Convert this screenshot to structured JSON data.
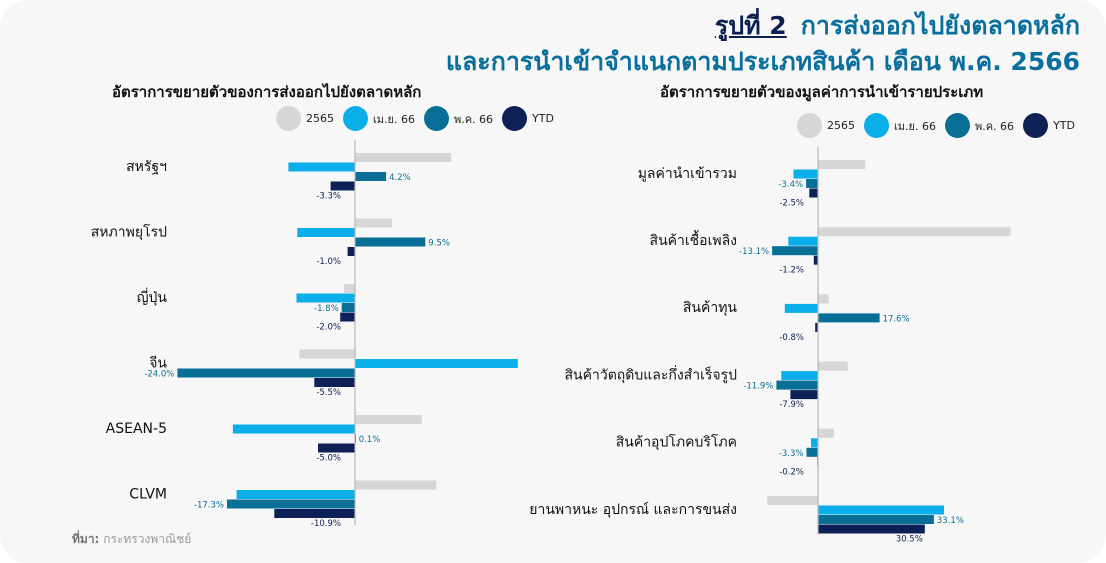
{
  "header": {
    "figure_label": "รูปที่ 2",
    "title_line1": "การส่งออกไปยังตลาดหลัก",
    "title_line2": "และการนำเข้าจำแนกตามประเภทสินค้า เดือน พ.ค. 2566"
  },
  "source": {
    "label": "ที่มา:",
    "text": "กระทรวงพาณิชย์"
  },
  "colors": {
    "2565": "#d6d6d6",
    "apr66": "#0aaee8",
    "may66": "#0a6f96",
    "ytd": "#0e2157"
  },
  "chart_data": [
    {
      "type": "bar",
      "orientation": "horizontal",
      "title": "อัตราการขยายตัวของการส่งออกไปยังตลาดหลัก",
      "categories": [
        "สหรัฐฯ",
        "สหภาพยุโรป",
        "ญี่ปุ่น",
        "จีน",
        "ASEAN-5",
        "CLVM"
      ],
      "series": [
        {
          "name": "2565",
          "values": [
            13.0,
            5.0,
            -1.5,
            -7.5,
            9.0,
            11.0
          ]
        },
        {
          "name": "เม.ย. 66",
          "values": [
            -9.0,
            -7.8,
            -7.9,
            22.0,
            -16.5,
            -16.0
          ]
        },
        {
          "name": "พ.ค. 66",
          "values": [
            4.2,
            9.5,
            -1.8,
            -24.0,
            0.1,
            -17.3
          ]
        },
        {
          "name": "YTD",
          "values": [
            -3.3,
            -1.0,
            -2.0,
            -5.5,
            -5.0,
            -10.9
          ]
        }
      ],
      "data_labels": [
        {
          "category": "สหรัฐฯ",
          "series": "พ.ค. 66",
          "text": "4.2%"
        },
        {
          "category": "สหรัฐฯ",
          "series": "YTD",
          "text": "-3.3%"
        },
        {
          "category": "สหภาพยุโรป",
          "series": "พ.ค. 66",
          "text": "9.5%"
        },
        {
          "category": "สหภาพยุโรป",
          "series": "YTD",
          "text": "-1.0%"
        },
        {
          "category": "ญี่ปุ่น",
          "series": "พ.ค. 66",
          "text": "-1.8%"
        },
        {
          "category": "ญี่ปุ่น",
          "series": "YTD",
          "text": "-2.0%"
        },
        {
          "category": "จีน",
          "series": "พ.ค. 66",
          "text": "-24.0%"
        },
        {
          "category": "จีน",
          "series": "YTD",
          "text": "-5.5%"
        },
        {
          "category": "ASEAN-5",
          "series": "พ.ค. 66",
          "text": "0.1%"
        },
        {
          "category": "ASEAN-5",
          "series": "YTD",
          "text": "-5.0%"
        },
        {
          "category": "CLVM",
          "series": "พ.ค. 66",
          "text": "-17.3%"
        },
        {
          "category": "CLVM",
          "series": "YTD",
          "text": "-10.9%"
        }
      ],
      "legend_position": "top",
      "grid": false
    },
    {
      "type": "bar",
      "orientation": "horizontal",
      "title": "อัตราการขยายตัวของมูลค่าการนำเข้ารายประเภท",
      "categories": [
        "มูลค่านำเข้ารวม",
        "สินค้าเชื้อเพลิง",
        "สินค้าทุน",
        "สินค้าวัตถุดิบและกึ่งสำเร็จรูป",
        "สินค้าอุปโภคบริโภค",
        "ยานพาหนะ อุปกรณ์ และการขนส่ง"
      ],
      "series": [
        {
          "name": "2565",
          "values": [
            13.5,
            55.0,
            3.0,
            8.5,
            4.5,
            -14.5
          ]
        },
        {
          "name": "เม.ย. 66",
          "values": [
            -7.0,
            -8.5,
            -9.5,
            -10.5,
            -2.0,
            36.0
          ]
        },
        {
          "name": "พ.ค. 66",
          "values": [
            -3.4,
            -13.1,
            17.6,
            -11.9,
            -3.3,
            33.1
          ]
        },
        {
          "name": "YTD",
          "values": [
            -2.5,
            -1.2,
            -0.8,
            -7.9,
            -0.2,
            30.5
          ]
        }
      ],
      "data_labels": [
        {
          "category": "มูลค่านำเข้ารวม",
          "series": "พ.ค. 66",
          "text": "-3.4%"
        },
        {
          "category": "มูลค่านำเข้ารวม",
          "series": "YTD",
          "text": "-2.5%"
        },
        {
          "category": "สินค้าเชื้อเพลิง",
          "series": "พ.ค. 66",
          "text": "-13.1%"
        },
        {
          "category": "สินค้าเชื้อเพลิง",
          "series": "YTD",
          "text": "-1.2%"
        },
        {
          "category": "สินค้าทุน",
          "series": "พ.ค. 66",
          "text": "17.6%"
        },
        {
          "category": "สินค้าทุน",
          "series": "YTD",
          "text": "-0.8%"
        },
        {
          "category": "สินค้าวัตถุดิบและกึ่งสำเร็จรูป",
          "series": "พ.ค. 66",
          "text": "-11.9%"
        },
        {
          "category": "สินค้าวัตถุดิบและกึ่งสำเร็จรูป",
          "series": "YTD",
          "text": "-7.9%"
        },
        {
          "category": "สินค้าอุปโภคบริโภค",
          "series": "พ.ค. 66",
          "text": "-3.3%"
        },
        {
          "category": "สินค้าอุปโภคบริโภค",
          "series": "YTD",
          "text": "-0.2%"
        },
        {
          "category": "ยานพาหนะ อุปกรณ์ และการขนส่ง",
          "series": "พ.ค. 66",
          "text": "33.1%"
        },
        {
          "category": "ยานพาหนะ อุปกรณ์ และการขนส่ง",
          "series": "YTD",
          "text": "30.5%"
        }
      ],
      "legend_position": "top",
      "grid": false
    }
  ]
}
